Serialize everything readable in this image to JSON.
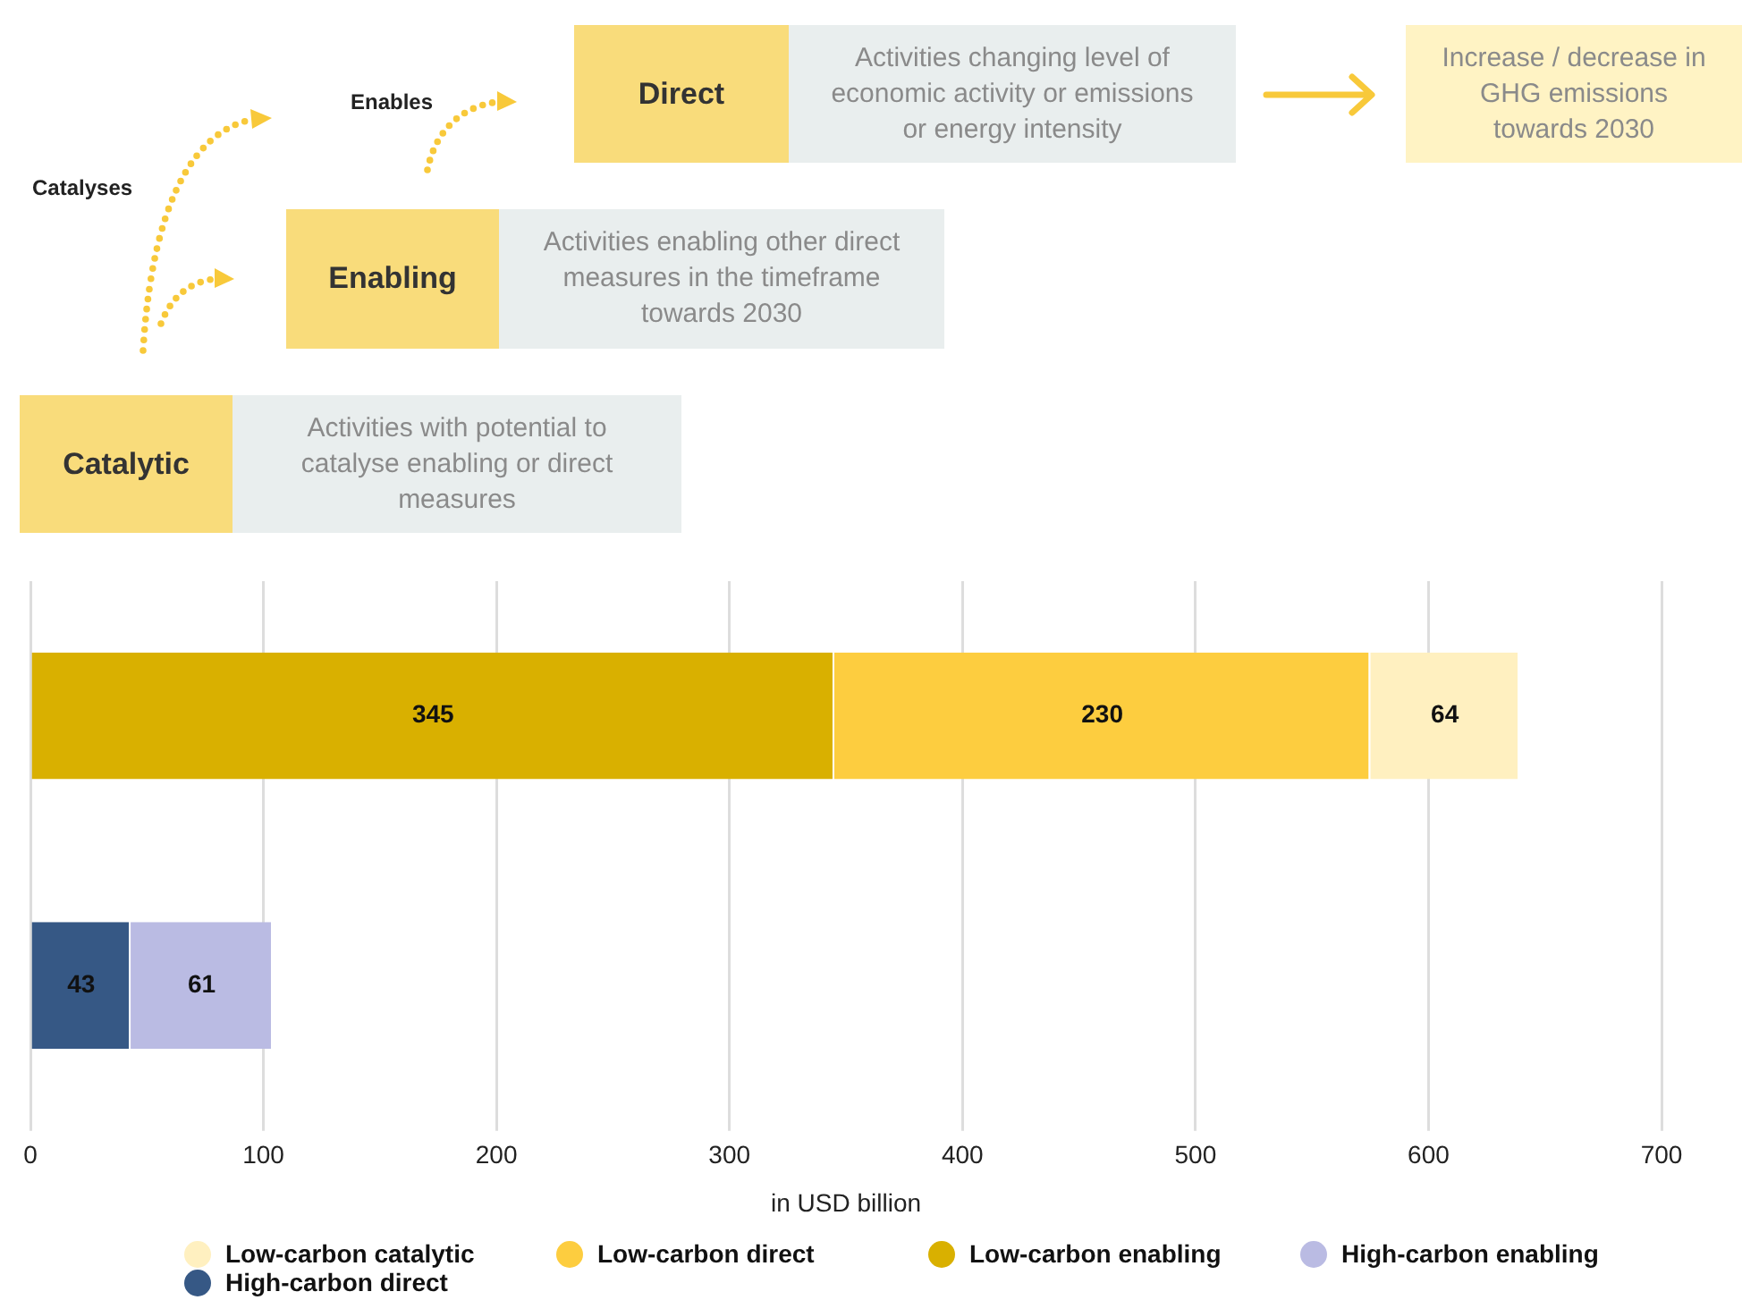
{
  "chart_data": {
    "type": "bar",
    "orientation": "horizontal",
    "stacked": true,
    "categories": [
      null,
      null
    ],
    "series": [
      {
        "name": "High-carbon direct",
        "color": "#365885",
        "values": [
          null,
          43
        ]
      },
      {
        "name": "High-carbon enabling",
        "color": "#babbe3",
        "values": [
          null,
          61
        ]
      },
      {
        "name": "Low-carbon enabling",
        "color": "#d9b000",
        "values": [
          345,
          null
        ]
      },
      {
        "name": "Low-carbon direct",
        "color": "#fdcd3f",
        "values": [
          230,
          null
        ]
      },
      {
        "name": "Low-carbon catalytic",
        "color": "#fff0c0",
        "values": [
          64,
          null
        ]
      }
    ],
    "xlim": [
      0,
      700
    ],
    "xticks": [
      0,
      100,
      200,
      300,
      400,
      500,
      600,
      700
    ],
    "xlabel": "in USD billion",
    "grid": "x",
    "legend": "bottom",
    "data_labels": true,
    "annotations": [
      "Direct",
      "Activities changing level of economic activity or emissions or energy intensity",
      "Increase / decrease in GHG emissions towards 2030",
      "Enabling",
      "Activities enabling other direct measures in the timeframe towards 2030",
      "Catalytic",
      "Activities with potential to catalyse enabling or direct measures",
      "Enables",
      "Catalyses"
    ]
  }
}
